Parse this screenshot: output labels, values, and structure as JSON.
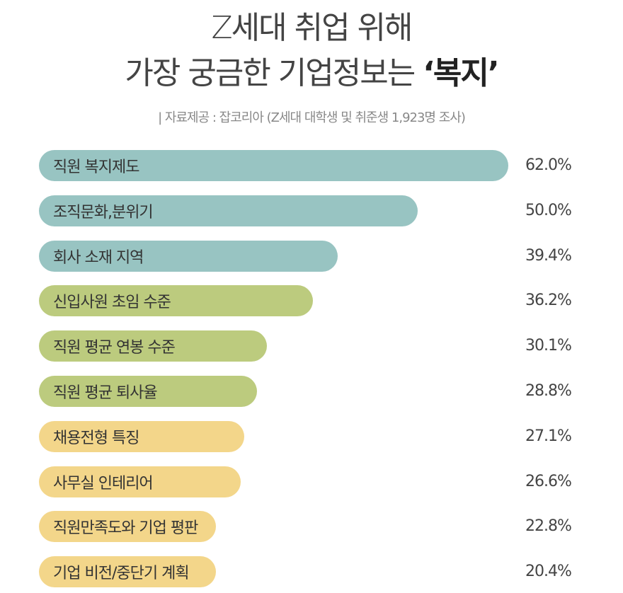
{
  "chart_data": {
    "type": "bar",
    "orientation": "horizontal",
    "title_line1": "Z세대 취업 위해",
    "title_line2_prefix": "가장 궁금한 기업정보는 ",
    "title_line2_highlight": "‘복지’",
    "subtitle": "| 자료제공 : 잡코리아 (Z세대 대학생 및 취준생 1,923명 조사)",
    "categories": [
      "직원 복지제도",
      "조직문화,분위기",
      "회사 소재 지역",
      "신입사원 초임 수준",
      "직원 평균 연봉 수준",
      "직원 평균 퇴사율",
      "채용전형 특징",
      "사무실 인테리어",
      "직원만족도와 기업 평판",
      "기업 비전/중단기 계획"
    ],
    "values": [
      62.0,
      50.0,
      39.4,
      36.2,
      30.1,
      28.8,
      27.1,
      26.6,
      22.8,
      20.4
    ],
    "value_labels": [
      "62.0%",
      "50.0%",
      "39.4%",
      "36.2%",
      "30.1%",
      "28.8%",
      "27.1%",
      "26.6%",
      "22.8%",
      "20.4%"
    ],
    "groups": [
      "teal",
      "teal",
      "teal",
      "green",
      "green",
      "green",
      "yellow",
      "yellow",
      "yellow",
      "yellow"
    ],
    "colors": {
      "teal": "#98c4c2",
      "green": "#bccb7e",
      "yellow": "#f3d68a"
    },
    "unit": "%"
  }
}
